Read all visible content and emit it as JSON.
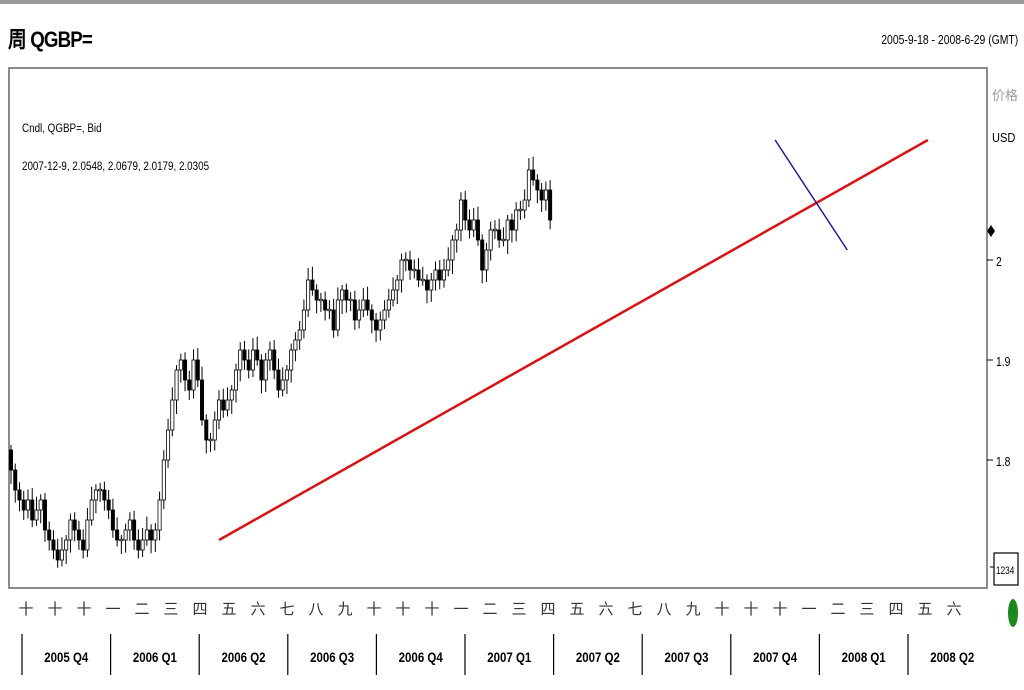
{
  "header": {
    "title": "周 QGBP=",
    "date_range": "2005-9-18 - 2008-6-29 (GMT)"
  },
  "price_panel": {
    "label": "价格",
    "currency": "USD",
    "zoom_button": "1234"
  },
  "info": {
    "series_label": "Cndl, QGBP=, Bid",
    "ohlc_readout": "2007-12-9, 2.0548, 2.0679, 2.0179, 2.0305"
  },
  "colors": {
    "candle": "#000000",
    "support_trendline": "#dd1111",
    "resistance_trendline": "#1a1aa6",
    "frame": "#8c8c8c",
    "status_dot": "#1a8a1a"
  },
  "chart_data": {
    "type": "candlestick",
    "frequency": "weekly",
    "instrument": "QGBP=",
    "ylim": [
      1.72,
      2.33
    ],
    "yticks": [
      1.8,
      1.9,
      2.0
    ],
    "ytick_labels": [
      "1.8",
      "1.9",
      "2"
    ],
    "month_ticks": [
      "十",
      "十",
      "十",
      "一",
      "二",
      "三",
      "四",
      "五",
      "六",
      "七",
      "八",
      "九",
      "十",
      "十",
      "十",
      "一",
      "二",
      "三",
      "四",
      "五",
      "六",
      "七",
      "八",
      "九",
      "十",
      "十",
      "十",
      "一",
      "二",
      "三",
      "四",
      "五",
      "六"
    ],
    "quarters": [
      "2005 Q4",
      "2006 Q1",
      "2006 Q2",
      "2006 Q3",
      "2006 Q4",
      "2007 Q1",
      "2007 Q2",
      "2007 Q3",
      "2007 Q4",
      "2008 Q1",
      "2008 Q2"
    ],
    "closes": [
      1.79,
      1.77,
      1.76,
      1.75,
      1.76,
      1.74,
      1.75,
      1.76,
      1.73,
      1.72,
      1.71,
      1.7,
      1.71,
      1.72,
      1.74,
      1.73,
      1.72,
      1.71,
      1.74,
      1.76,
      1.77,
      1.77,
      1.76,
      1.75,
      1.73,
      1.72,
      1.72,
      1.73,
      1.74,
      1.72,
      1.71,
      1.72,
      1.73,
      1.72,
      1.73,
      1.76,
      1.8,
      1.83,
      1.86,
      1.89,
      1.9,
      1.88,
      1.87,
      1.9,
      1.88,
      1.84,
      1.82,
      1.82,
      1.84,
      1.86,
      1.85,
      1.86,
      1.87,
      1.89,
      1.91,
      1.9,
      1.89,
      1.91,
      1.9,
      1.88,
      1.9,
      1.91,
      1.89,
      1.87,
      1.88,
      1.89,
      1.91,
      1.92,
      1.93,
      1.95,
      1.98,
      1.97,
      1.96,
      1.96,
      1.95,
      1.95,
      1.93,
      1.96,
      1.97,
      1.96,
      1.96,
      1.94,
      1.95,
      1.96,
      1.95,
      1.94,
      1.93,
      1.94,
      1.95,
      1.96,
      1.97,
      1.98,
      2.0,
      2.0,
      1.99,
      1.99,
      1.98,
      1.98,
      1.97,
      1.98,
      1.99,
      1.98,
      1.99,
      2.0,
      2.02,
      2.03,
      2.06,
      2.04,
      2.03,
      2.04,
      2.02,
      1.99,
      2.01,
      2.03,
      2.03,
      2.02,
      2.02,
      2.04,
      2.03,
      2.05,
      2.05,
      2.06,
      2.09,
      2.08,
      2.07,
      2.06,
      2.07,
      2.04
    ],
    "support_trendline": {
      "from": {
        "week": 49,
        "value": 1.72
      },
      "to": {
        "week": 216,
        "value": 2.12
      }
    },
    "resistance_trendline": {
      "from": {
        "week": 180,
        "value": 2.12
      },
      "to": {
        "week": 197,
        "value": 2.01
      }
    }
  }
}
